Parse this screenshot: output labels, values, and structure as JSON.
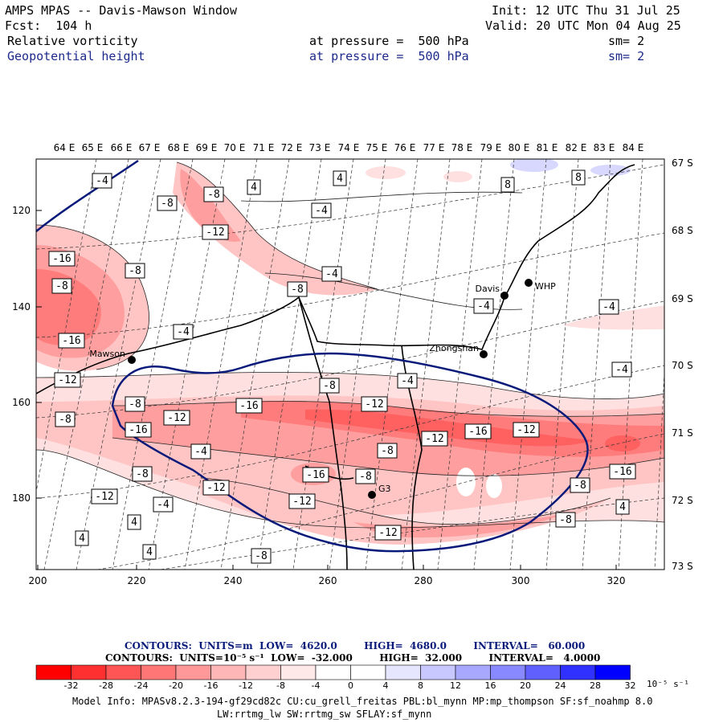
{
  "header": {
    "title": "AMPS MPAS -- Davis-Mawson Window",
    "forecast": "Fcst:  104 h",
    "init": "Init: 12 UTC Thu 31 Jul 25",
    "valid": "Valid: 20 UTC Mon 04 Aug 25",
    "field1": {
      "name": "Relative vorticity",
      "level": "at pressure =  500 hPa",
      "smooth": "sm= 2"
    },
    "field2": {
      "name": "Geopotential height",
      "level": "at pressure =  500 hPa",
      "smooth": "sm= 2"
    }
  },
  "map": {
    "top_lon_labels": [
      "64 E",
      "65 E",
      "66 E",
      "67 E",
      "68 E",
      "69 E",
      "70 E",
      "71 E",
      "72 E",
      "73 E",
      "74 E",
      "75 E",
      "76 E",
      "77 E",
      "78 E",
      "79 E",
      "80 E",
      "81 E",
      "82 E",
      "83 E",
      "84 E"
    ],
    "right_lat_labels": [
      "67 S",
      "68 S",
      "69 S",
      "70 S",
      "71 S",
      "72 S",
      "73 S"
    ],
    "left_axis_labels": [
      "120",
      "140",
      "160",
      "180"
    ],
    "bottom_axis_labels": [
      "200",
      "220",
      "240",
      "260",
      "280",
      "300",
      "320"
    ],
    "stations": [
      {
        "name": "Mawson"
      },
      {
        "name": "Davis"
      },
      {
        "name": "WHP"
      },
      {
        "name": "Zhongshan"
      },
      {
        "name": "G3"
      }
    ],
    "contour_labels": [
      "-4",
      "-8",
      "4",
      "4",
      "-8",
      "-4",
      "-12",
      "-16",
      "-8",
      "-8",
      "-4",
      "-16",
      "-4",
      "-4",
      "-4",
      "-8",
      "-12",
      "-16",
      "-8",
      "-12",
      "-16",
      "-4",
      "-12",
      "-8",
      "-16",
      "-12",
      "-16",
      "-8",
      "-12",
      "-12",
      "-4",
      "8",
      "8",
      "-4",
      "-12",
      "-8",
      "-8",
      "-16",
      "-12",
      "-8",
      "-8",
      "4",
      "-4",
      "4",
      "-12",
      "-8",
      "4",
      "4",
      "-8",
      "-12",
      "-4"
    ]
  },
  "colorbar": {
    "height_contours_line": "CONTOURS:  UNITS=m  LOW=  4620.0        HIGH=  4680.0        INTERVAL=   60.000",
    "vort_contours_line": "CONTOURS:  UNITS=10⁻⁵ s⁻¹  LOW=  -32.000        HIGH=  32.000        INTERVAL=   4.0000",
    "tick_labels": [
      "-32",
      "-28",
      "-24",
      "-20",
      "-16",
      "-12",
      "-8",
      "-4",
      "0",
      "4",
      "8",
      "12",
      "16",
      "20",
      "24",
      "28",
      "32"
    ],
    "units": "10⁻⁵ s⁻¹",
    "colors": [
      "#ff0000",
      "#ff3030",
      "#ff5555",
      "#ff7676",
      "#ff9898",
      "#ffb6b6",
      "#ffd0d0",
      "#ffe8e8",
      "#ffffff",
      "#ffffff",
      "#e6e6ff",
      "#c8c8ff",
      "#a8a8ff",
      "#8888ff",
      "#6060ff",
      "#3030ff",
      "#0000ff"
    ]
  },
  "model_info": {
    "line1": "Model Info: MPASv8.2.3-194-gf29cd82c CU:cu_grell_freitas PBL:bl_mynn MP:mp_thompson SF:sf_noahmp 8.0",
    "line2": "LW:rrtmg_lw SW:rrtmg_sw SFLAY:sf_mynn"
  }
}
